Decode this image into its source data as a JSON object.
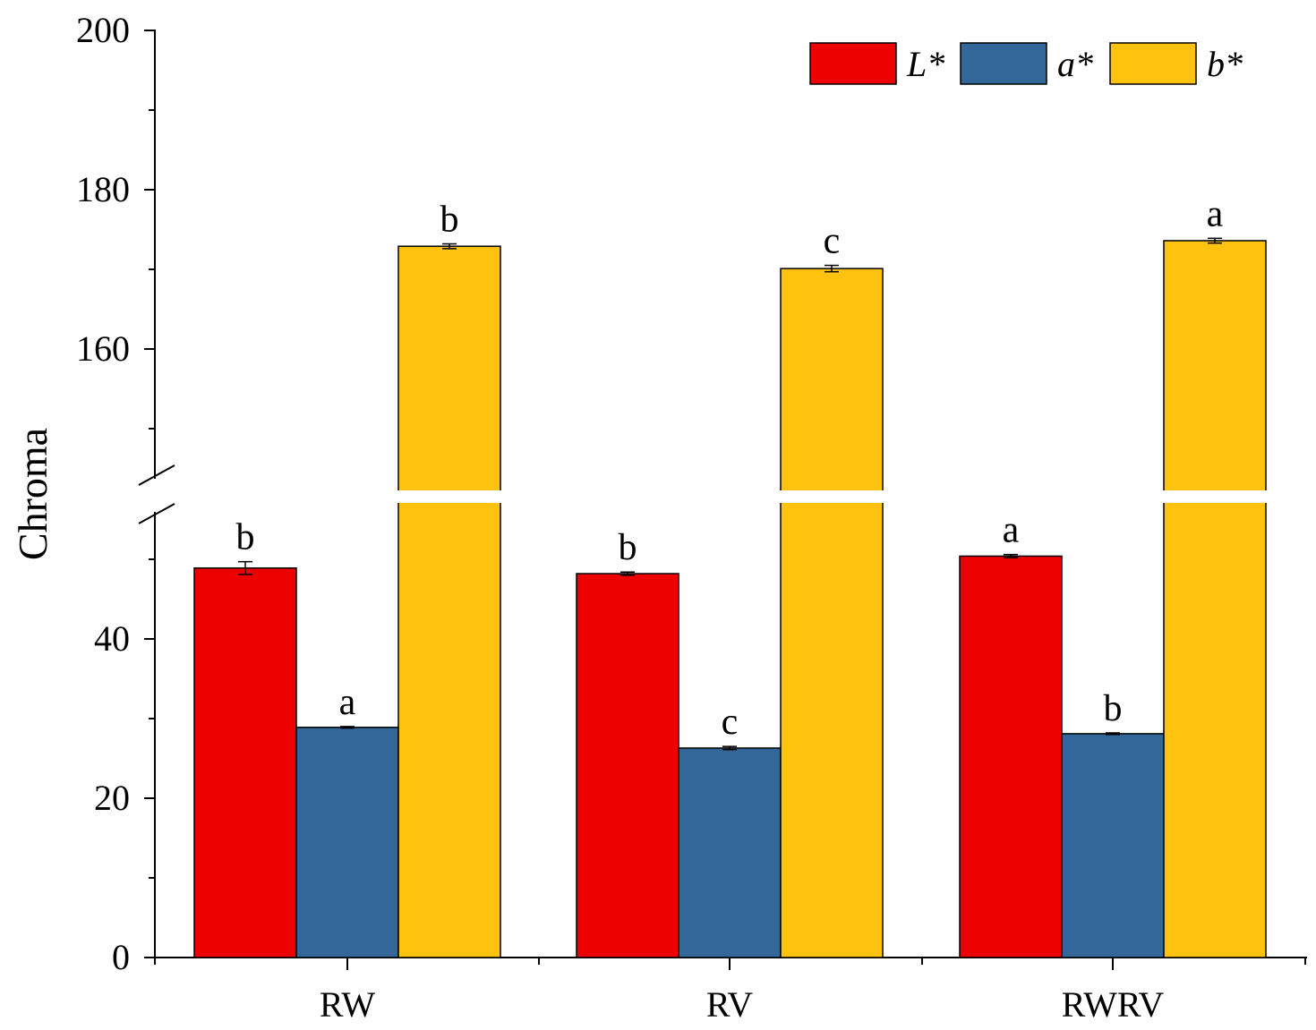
{
  "chart_data": {
    "type": "bar",
    "ylabel": "Chroma",
    "xlabel": "",
    "categories": [
      "RW",
      "RV",
      "RWRV"
    ],
    "axis_break": {
      "from": 60,
      "to": 142
    },
    "ylim": [
      0,
      200
    ],
    "yticks_lower": [
      0,
      20,
      40
    ],
    "yticks_upper": [
      160,
      180,
      200
    ],
    "series": [
      {
        "name": "L*",
        "color": "#ee0000",
        "values": [
          48.9,
          48.2,
          50.4
        ],
        "errors": [
          0.8,
          0.2,
          0.2
        ],
        "letters": [
          "b",
          "b",
          "a"
        ]
      },
      {
        "name": "a*",
        "color": "#336699",
        "values": [
          28.9,
          26.3,
          28.1
        ],
        "errors": [
          0.1,
          0.2,
          0.1
        ],
        "letters": [
          "a",
          "c",
          "b"
        ]
      },
      {
        "name": "b*",
        "color": "#ffc20e",
        "values": [
          172.9,
          170.1,
          173.6
        ],
        "errors": [
          0.3,
          0.4,
          0.3
        ],
        "letters": [
          "b",
          "c",
          "a"
        ]
      }
    ],
    "legend_position": "top-right",
    "grid": false
  }
}
